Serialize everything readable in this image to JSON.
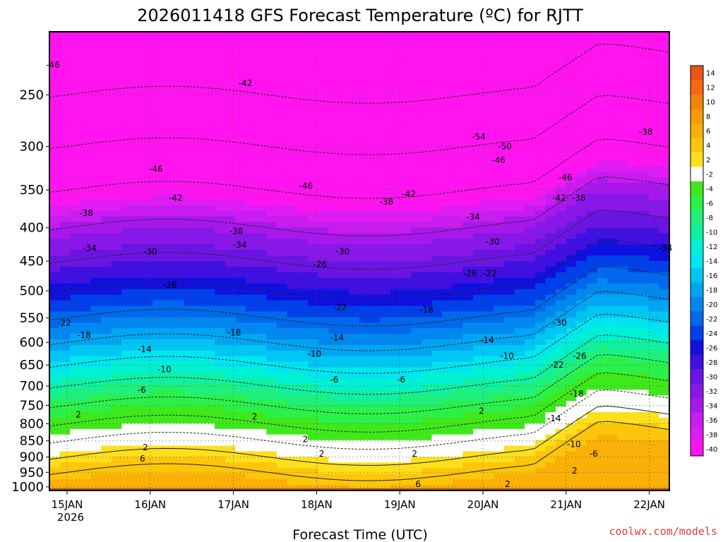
{
  "chart_data": {
    "type": "heatmap",
    "title": "2026011418 GFS Forecast Temperature (ºC) for RJTT",
    "xlabel": "Forecast Time (UTC)",
    "ylabel": "",
    "y_scale": "pressure",
    "y_ticks": [
      250,
      300,
      350,
      400,
      450,
      500,
      550,
      600,
      650,
      700,
      750,
      800,
      850,
      900,
      950,
      1000
    ],
    "ylim": [
      200,
      1013
    ],
    "x_ticks": [
      "15JAN",
      "16JAN",
      "17JAN",
      "18JAN",
      "19JAN",
      "20JAN",
      "21JAN",
      "22JAN"
    ],
    "x_year_label": "2026",
    "colorbar": {
      "labels": [
        "14",
        "12",
        "10",
        "8",
        "6",
        "4",
        "2",
        "-2",
        "-4",
        "-6",
        "-8",
        "-10",
        "-12",
        "-14",
        "-16",
        "-18",
        "-20",
        "-22",
        "-24",
        "-26",
        "-28",
        "-30",
        "-32",
        "-34",
        "-36",
        "-38",
        "-40"
      ],
      "colors": [
        "#e8551a",
        "#f36a10",
        "#f5820a",
        "#f89a0a",
        "#fbb008",
        "#fdc60a",
        "#fde01c",
        "#ffffff",
        "#3fe81a",
        "#2bf04a",
        "#20f07a",
        "#10f0a0",
        "#00f0d4",
        "#00e6f0",
        "#00c6f4",
        "#00a6f4",
        "#0088f0",
        "#0068ec",
        "#0040e8",
        "#1010e0",
        "#4010e0",
        "#6a14e4",
        "#8818e8",
        "#a818ec",
        "#c81cf0",
        "#e01cf4",
        "#ff14f0"
      ]
    },
    "temperature_profile": {
      "pressure_levels": [
        1000,
        950,
        900,
        850,
        800,
        750,
        700,
        650,
        600,
        550,
        500,
        450,
        400,
        350,
        300,
        250
      ],
      "typical_values": [
        6,
        4,
        2,
        -2,
        -4,
        -6,
        -10,
        -14,
        -18,
        -22,
        -26,
        -30,
        -34,
        -42,
        -46,
        -50
      ]
    },
    "contours": [
      {
        "label": "-46",
        "x": "15JAN",
        "y": 225
      },
      {
        "label": "-42",
        "x": "17JAN",
        "y": 240
      },
      {
        "label": "-54",
        "x": "20JAN",
        "y": 290
      },
      {
        "label": "-50",
        "x": "20JAN",
        "y": 300
      },
      {
        "label": "-46",
        "x": "16JAN",
        "y": 325
      },
      {
        "label": "-46",
        "x": "18JAN",
        "y": 345
      },
      {
        "label": "-46",
        "x": "20JAN",
        "y": 315
      },
      {
        "label": "-46",
        "x": "21JAN",
        "y": 335
      },
      {
        "label": "-42",
        "x": "16JAN",
        "y": 360
      },
      {
        "label": "-42",
        "x": "19JAN",
        "y": 355
      },
      {
        "label": "-42",
        "x": "21JAN",
        "y": 360
      },
      {
        "label": "-38",
        "x": "15JAN",
        "y": 380
      },
      {
        "label": "-38",
        "x": "17JAN",
        "y": 405
      },
      {
        "label": "-38",
        "x": "19JAN",
        "y": 365
      },
      {
        "label": "-38",
        "x": "21JAN",
        "y": 360
      },
      {
        "label": "-38",
        "x": "22JAN",
        "y": 285
      },
      {
        "label": "-34",
        "x": "15JAN",
        "y": 430
      },
      {
        "label": "-34",
        "x": "17JAN",
        "y": 425
      },
      {
        "label": "-34",
        "x": "20JAN",
        "y": 385
      },
      {
        "label": "-34",
        "x": "22JAN",
        "y": 430
      },
      {
        "label": "-30",
        "x": "16JAN",
        "y": 435
      },
      {
        "label": "-30",
        "x": "18JAN",
        "y": 435
      },
      {
        "label": "-30",
        "x": "20JAN",
        "y": 420
      },
      {
        "label": "-30",
        "x": "21JAN",
        "y": 560
      },
      {
        "label": "-26",
        "x": "16JAN",
        "y": 490
      },
      {
        "label": "-26",
        "x": "18JAN",
        "y": 455
      },
      {
        "label": "-26",
        "x": "20JAN",
        "y": 470
      },
      {
        "label": "-26",
        "x": "21JAN",
        "y": 630
      },
      {
        "label": "-22",
        "x": "15JAN",
        "y": 560
      },
      {
        "label": "-22",
        "x": "18JAN",
        "y": 530
      },
      {
        "label": "-22",
        "x": "20JAN",
        "y": 470
      },
      {
        "label": "-22",
        "x": "21JAN",
        "y": 650
      },
      {
        "label": "-18",
        "x": "15JAN",
        "y": 585
      },
      {
        "label": "-18",
        "x": "17JAN",
        "y": 580
      },
      {
        "label": "-18",
        "x": "19JAN",
        "y": 535
      },
      {
        "label": "-18",
        "x": "21JAN",
        "y": 720
      },
      {
        "label": "-14",
        "x": "16JAN",
        "y": 615
      },
      {
        "label": "-14",
        "x": "18JAN",
        "y": 590
      },
      {
        "label": "-14",
        "x": "20JAN",
        "y": 595
      },
      {
        "label": "-14",
        "x": "21JAN",
        "y": 785
      },
      {
        "label": "-10",
        "x": "16JAN",
        "y": 660
      },
      {
        "label": "-10",
        "x": "18JAN",
        "y": 625
      },
      {
        "label": "-10",
        "x": "20JAN",
        "y": 630
      },
      {
        "label": "-10",
        "x": "21JAN",
        "y": 860
      },
      {
        "label": "-6",
        "x": "16JAN",
        "y": 710
      },
      {
        "label": "-6",
        "x": "18JAN",
        "y": 685
      },
      {
        "label": "-6",
        "x": "19JAN",
        "y": 685
      },
      {
        "label": "-6",
        "x": "21JAN",
        "y": 890
      },
      {
        "label": "2",
        "x": "15JAN",
        "y": 775
      },
      {
        "label": "2",
        "x": "16JAN",
        "y": 870
      },
      {
        "label": "2",
        "x": "17JAN",
        "y": 780
      },
      {
        "label": "2",
        "x": "18JAN",
        "y": 890
      },
      {
        "label": "2",
        "x": "18JAN",
        "y": 845
      },
      {
        "label": "2",
        "x": "19JAN",
        "y": 890
      },
      {
        "label": "2",
        "x": "20JAN",
        "y": 765
      },
      {
        "label": "2",
        "x": "20JAN",
        "y": 990
      },
      {
        "label": "2",
        "x": "21JAN",
        "y": 945
      },
      {
        "label": "6",
        "x": "16JAN",
        "y": 905
      },
      {
        "label": "6",
        "x": "19JAN",
        "y": 990
      }
    ]
  },
  "watermark": "coolwx.com/models"
}
